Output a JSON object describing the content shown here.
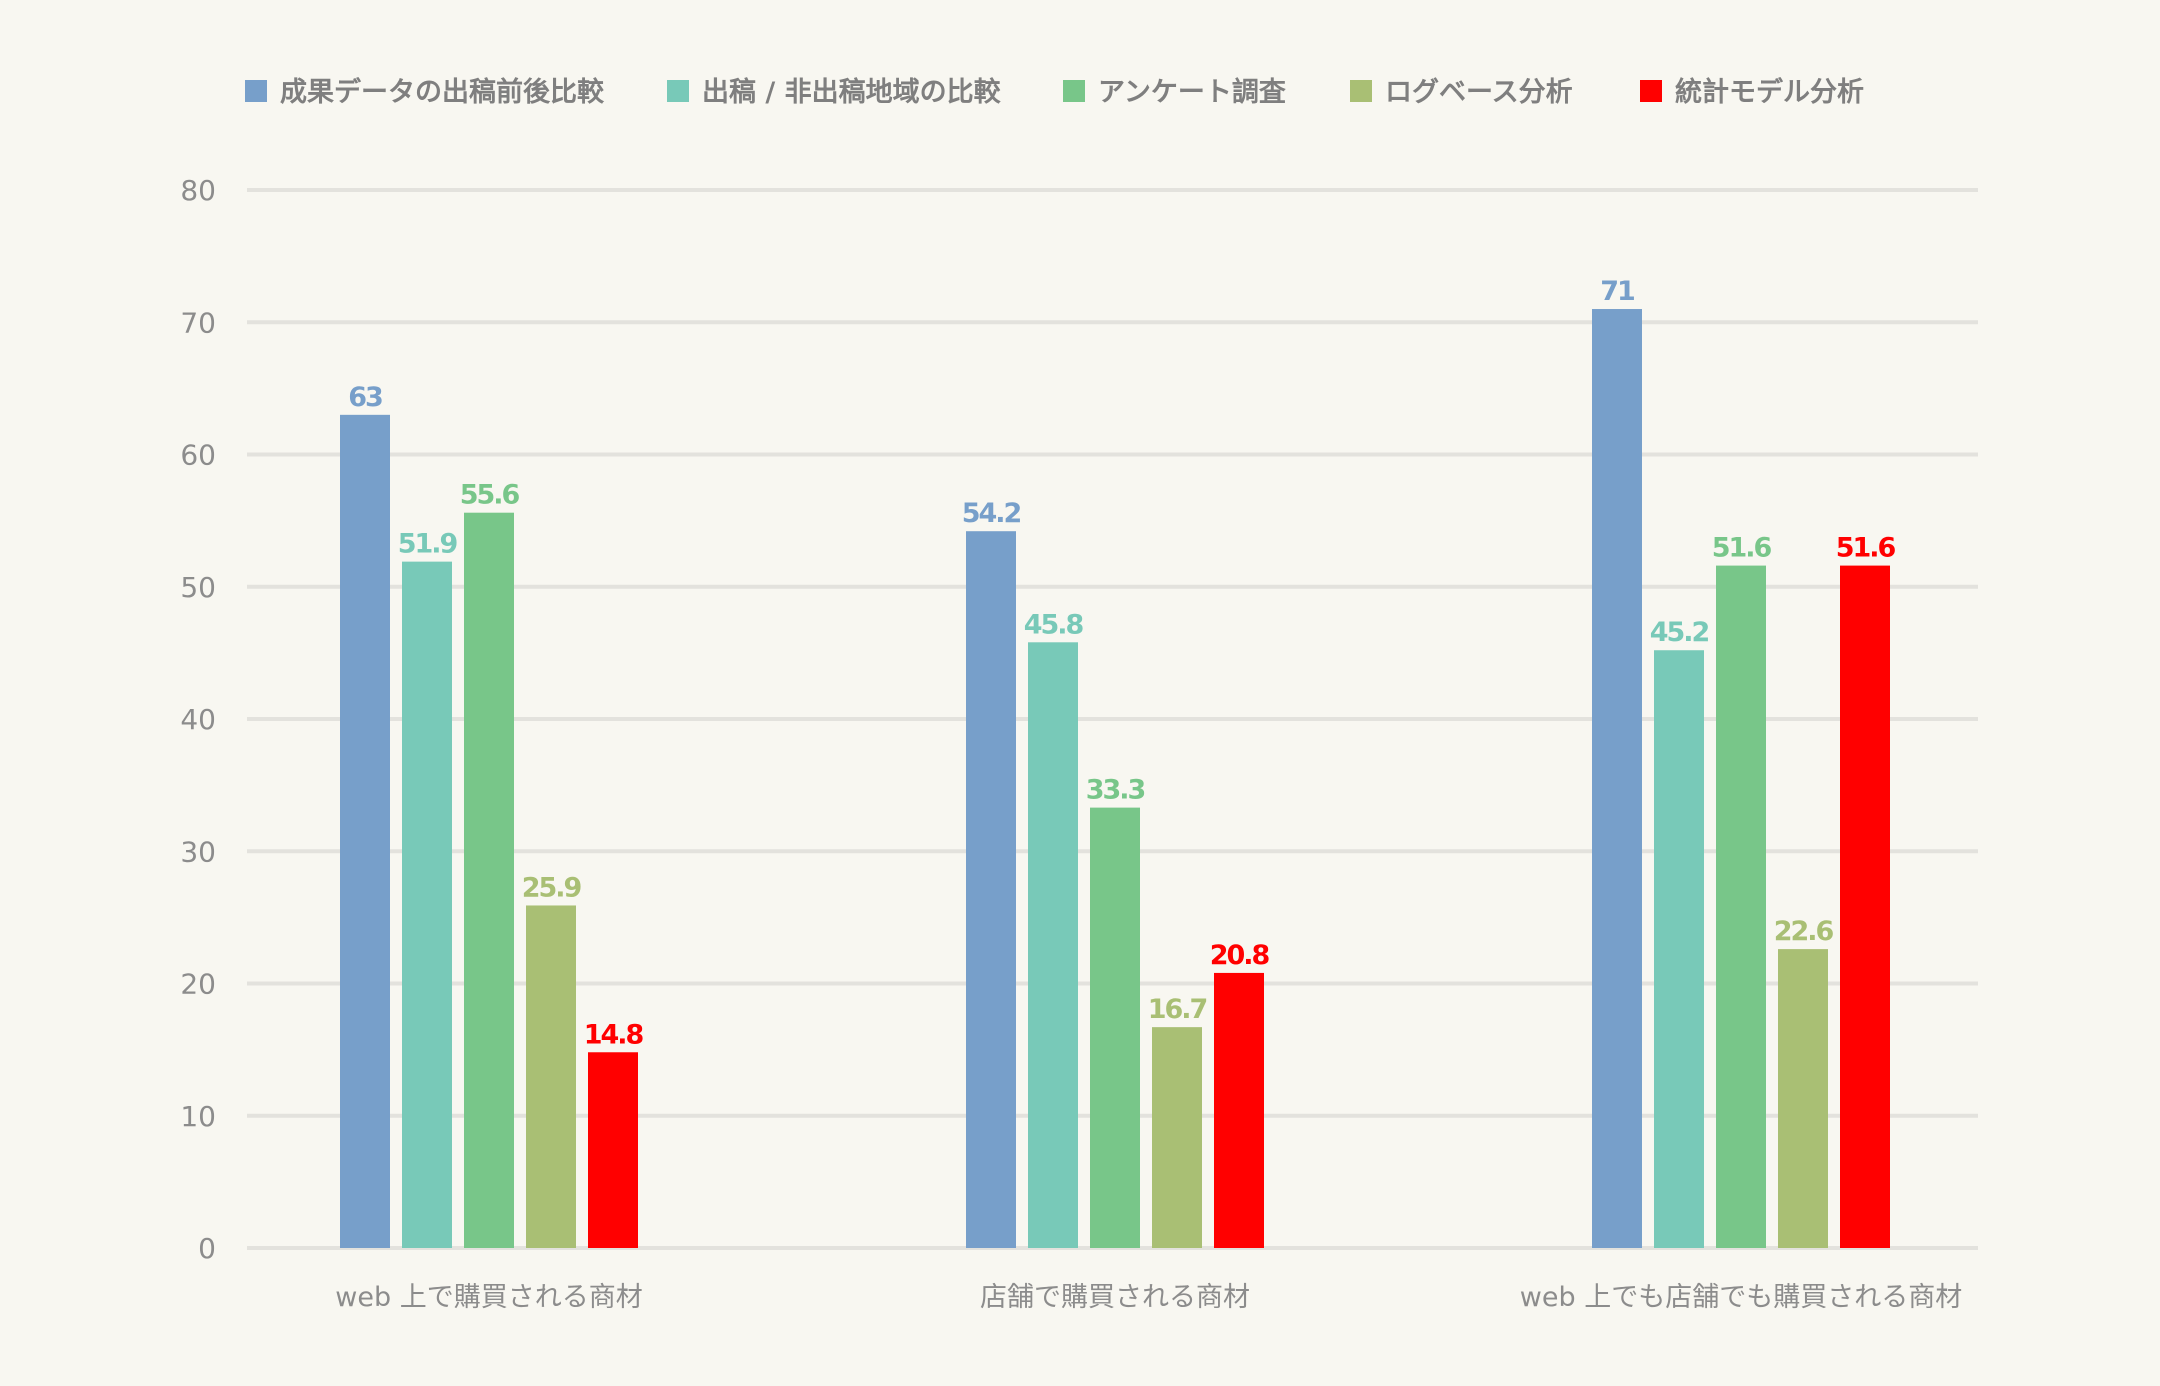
{
  "chart_data": {
    "type": "bar",
    "title": "",
    "xlabel": "",
    "ylabel": "",
    "ylim": [
      0,
      80
    ],
    "yticks": [
      0,
      10,
      20,
      30,
      40,
      50,
      60,
      70,
      80
    ],
    "grid": true,
    "legend_position": "top",
    "categories": [
      "web 上で購買される商材",
      "店舗で購買される商材",
      "web 上でも店舗でも購買される商材"
    ],
    "series": [
      {
        "name": "成果データの出稿前後比較",
        "color": "#779fca",
        "values": [
          63,
          54.2,
          71
        ]
      },
      {
        "name": "出稿 / 非出稿地域の比較",
        "color": "#78c9b8",
        "values": [
          51.9,
          45.8,
          45.2
        ]
      },
      {
        "name": "アンケート調査",
        "color": "#78c689",
        "values": [
          55.6,
          33.3,
          51.6
        ]
      },
      {
        "name": "ログベース分析",
        "color": "#a9bf74",
        "values": [
          25.9,
          16.7,
          22.6
        ]
      },
      {
        "name": "統計モデル分析",
        "color": "#ff0000",
        "values": [
          14.8,
          20.8,
          51.6
        ]
      }
    ]
  }
}
